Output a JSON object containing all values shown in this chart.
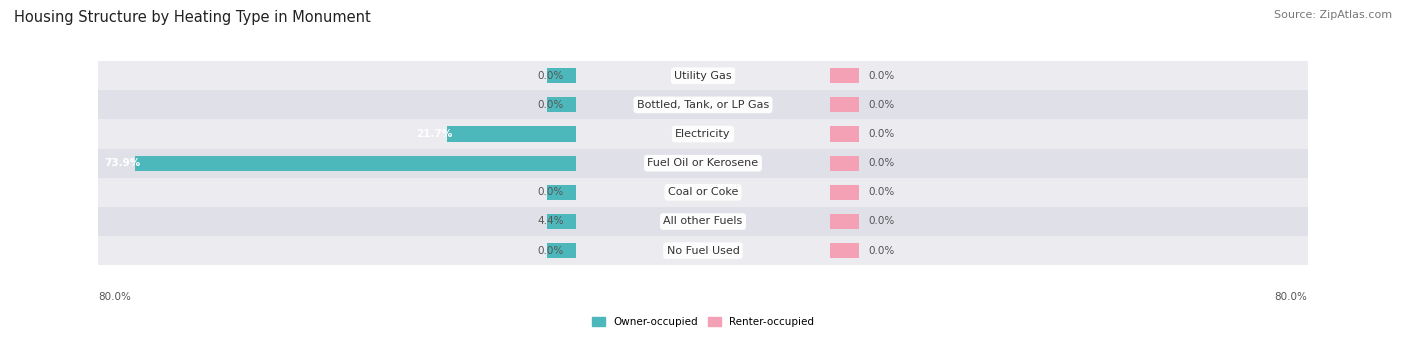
{
  "title": "Housing Structure by Heating Type in Monument",
  "source": "Source: ZipAtlas.com",
  "categories": [
    "Utility Gas",
    "Bottled, Tank, or LP Gas",
    "Electricity",
    "Fuel Oil or Kerosene",
    "Coal or Coke",
    "All other Fuels",
    "No Fuel Used"
  ],
  "owner_values": [
    0.0,
    0.0,
    21.7,
    73.9,
    0.0,
    4.4,
    0.0
  ],
  "renter_values": [
    0.0,
    0.0,
    0.0,
    0.0,
    0.0,
    0.0,
    0.0
  ],
  "owner_color": "#4db8bc",
  "renter_color": "#f4a0b5",
  "row_bg_light": "#ebebf0",
  "row_bg_dark": "#e0e0e8",
  "xlim": 80.0,
  "legend_owner": "Owner-occupied",
  "legend_renter": "Renter-occupied",
  "title_fontsize": 10.5,
  "source_fontsize": 8,
  "category_fontsize": 8,
  "value_fontsize": 7.5,
  "figsize": [
    14.06,
    3.4
  ],
  "dpi": 100,
  "min_bar_width": 5.0
}
